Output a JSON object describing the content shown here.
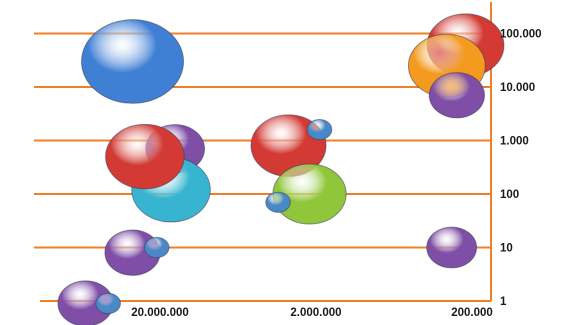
{
  "chart_data": {
    "type": "bubble",
    "x_axis": {
      "scale": "log",
      "direction": "reversed",
      "ticks": [
        "20.000.000",
        "2.000.000",
        "200.000"
      ],
      "tick_values": [
        20000000,
        2000000,
        200000
      ]
    },
    "y_axis": {
      "scale": "log",
      "position": "right",
      "ticks": [
        "1",
        "10",
        "100",
        "1.000",
        "10.000",
        "100.000"
      ],
      "tick_values": [
        1,
        10,
        100,
        1000,
        10000,
        100000
      ]
    },
    "grid": "horizontal",
    "gridline_color": "#f07f2a",
    "bubbles": [
      {
        "color": "#3f7fd4",
        "x": 30000000,
        "y": 30000,
        "size": 5
      },
      {
        "color": "#d23a33",
        "x": 220000,
        "y": 60000,
        "size": 3.6
      },
      {
        "color": "#f39a1f",
        "x": 290000,
        "y": 25000,
        "size": 3.6
      },
      {
        "color": "#7f4ea6",
        "x": 250000,
        "y": 7000,
        "size": 2.4
      },
      {
        "color": "#7f4ea6",
        "x": 16000000,
        "y": 700,
        "size": 2.6
      },
      {
        "color": "#36b4d0",
        "x": 17000000,
        "y": 120,
        "size": 3.7
      },
      {
        "color": "#d23a33",
        "x": 25000000,
        "y": 500,
        "size": 3.7
      },
      {
        "color": "#d23a33",
        "x": 3000000,
        "y": 800,
        "size": 3.5
      },
      {
        "color": "#4a89c8",
        "x": 1900000,
        "y": 1600,
        "size": 0.7
      },
      {
        "color": "#8fc63a",
        "x": 2200000,
        "y": 100,
        "size": 3.4
      },
      {
        "color": "#4a89c8",
        "x": 3500000,
        "y": 70,
        "size": 0.7
      },
      {
        "color": "#7f4ea6",
        "x": 30000000,
        "y": 8,
        "size": 2.4
      },
      {
        "color": "#4a89c8",
        "x": 21000000,
        "y": 10,
        "size": 0.7
      },
      {
        "color": "#7f4ea6",
        "x": 270000,
        "y": 10,
        "size": 2.1
      },
      {
        "color": "#7f4ea6",
        "x": 60000000,
        "y": 0.9,
        "size": 2.4
      },
      {
        "color": "#4a89c8",
        "x": 43000000,
        "y": 0.9,
        "size": 0.7
      }
    ]
  }
}
